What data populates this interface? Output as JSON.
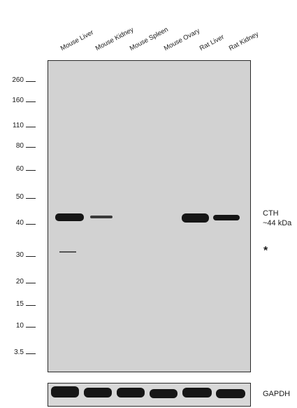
{
  "lanes": [
    "Mouse Liver",
    "Mouse Kidney",
    "Mouse Spleen",
    "Mouse Ovary",
    "Rat Liver",
    "Rat Kidney"
  ],
  "markers": [
    "260",
    "160",
    "110",
    "80",
    "60",
    "50",
    "40",
    "30",
    "20",
    "15",
    "10",
    "3.5"
  ],
  "annotations": {
    "target": "CTH",
    "size": "~44 kDa",
    "nonspecific_mark": "*",
    "loading_control": "GAPDH"
  }
}
